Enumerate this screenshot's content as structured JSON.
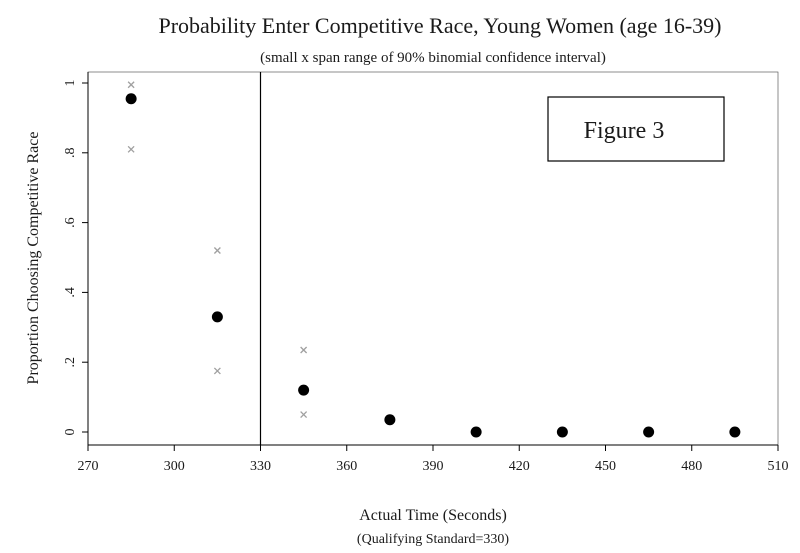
{
  "chart_data": {
    "type": "scatter",
    "title": "Probability Enter Competitive Race, Young Women (age 16-39)",
    "subtitle": "(small x span range of 90% binomial confidence interval)",
    "xlabel": "Actual Time (Seconds)",
    "xlabel_note": "(Qualifying Standard=330)",
    "ylabel": "Proportion Choosing Competitive Race",
    "xlim": [
      270,
      510
    ],
    "ylim": [
      0,
      1
    ],
    "x_ticks": [
      270,
      300,
      330,
      360,
      390,
      420,
      450,
      480,
      510
    ],
    "y_ticks": [
      {
        "value": 0,
        "label": "0"
      },
      {
        "value": 0.2,
        "label": ".2"
      },
      {
        "value": 0.4,
        "label": ".4"
      },
      {
        "value": 0.6,
        "label": ".6"
      },
      {
        "value": 0.8,
        "label": ".8"
      },
      {
        "value": 1,
        "label": "1"
      }
    ],
    "vline": 330,
    "annotation": "Figure 3",
    "grid": false,
    "point_color": "#000000",
    "ci_color": "#a0a0a0",
    "points": [
      {
        "x": 285,
        "y": 0.955
      },
      {
        "x": 315,
        "y": 0.33
      },
      {
        "x": 345,
        "y": 0.12
      },
      {
        "x": 375,
        "y": 0.035
      },
      {
        "x": 405,
        "y": 0.0
      },
      {
        "x": 435,
        "y": 0.0
      },
      {
        "x": 465,
        "y": 0.0
      },
      {
        "x": 495,
        "y": 0.0
      }
    ],
    "ci": [
      {
        "x": 285,
        "low": 0.81,
        "high": 0.995
      },
      {
        "x": 315,
        "low": 0.175,
        "high": 0.52
      },
      {
        "x": 345,
        "low": 0.05,
        "high": 0.235
      }
    ]
  }
}
